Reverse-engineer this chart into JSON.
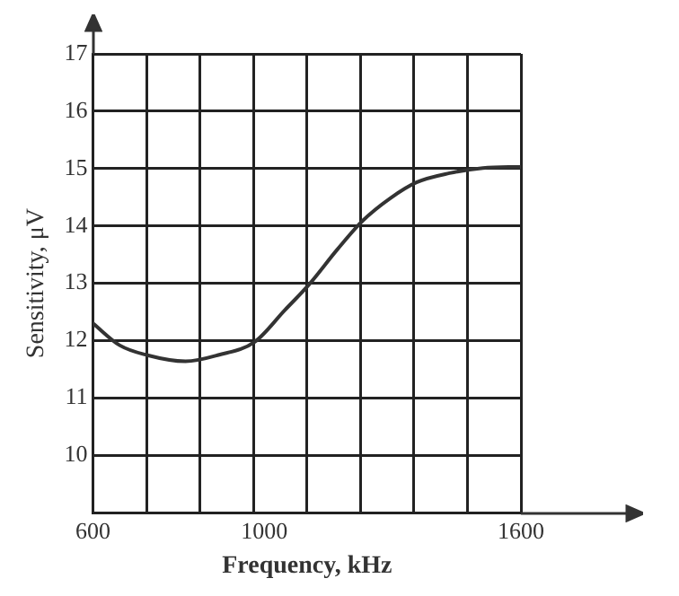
{
  "chart_data": {
    "type": "line",
    "xlabel": "Frequency, kHz",
    "ylabel": "Sensitivity, μV",
    "x": [
      600,
      662,
      725,
      816,
      893,
      978,
      1048,
      1105,
      1171,
      1230,
      1294,
      1356,
      1433,
      1511,
      1600
    ],
    "series": [
      {
        "color": "#333333",
        "values": [
          12.3,
          11.92,
          11.75,
          11.64,
          11.75,
          11.98,
          12.53,
          12.98,
          13.59,
          14.09,
          14.48,
          14.76,
          14.92,
          15.01,
          15.03
        ]
      }
    ],
    "xlim": [
      600,
      1600
    ],
    "xticks": [
      600,
      {
        "value": 725,
        "label": null
      },
      {
        "value": 850,
        "label": null
      },
      {
        "value": 975,
        "label": null
      },
      1000,
      {
        "value": 1100,
        "label": null
      },
      {
        "value": 1225,
        "label": null
      },
      {
        "value": 1350,
        "label": null
      },
      {
        "value": 1475,
        "label": null
      },
      1600
    ],
    "ylim": [
      9,
      17
    ],
    "yticks": [
      10,
      11,
      12,
      13,
      14,
      15,
      16,
      17
    ],
    "grid": true,
    "marker": "none",
    "line_style": "solid",
    "legend": false
  }
}
